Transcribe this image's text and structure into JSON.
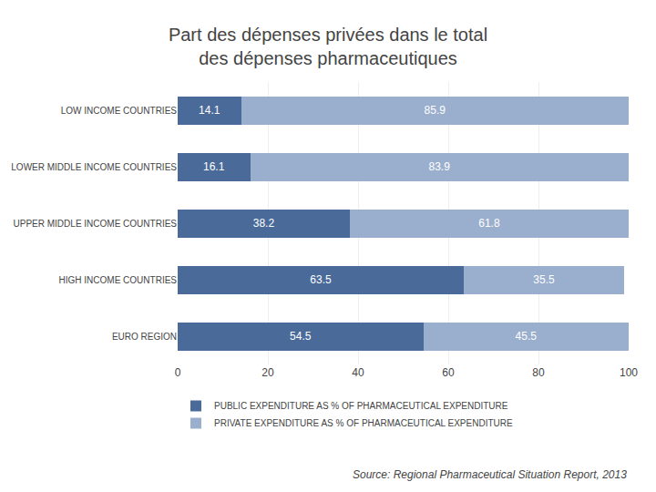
{
  "chart_data": {
    "type": "bar",
    "orientation": "horizontal",
    "stacked": true,
    "title": "Part des dépenses privées dans le total",
    "subtitle": "des dépenses pharmaceutiques",
    "categories": [
      "LOW INCOME COUNTRIES",
      "LOWER MIDDLE INCOME COUNTRIES",
      "UPPER MIDDLE INCOME COUNTRIES",
      "HIGH INCOME COUNTRIES",
      "EURO REGION"
    ],
    "series": [
      {
        "name": "PUBLIC EXPENDITURE AS % OF PHARMACEUTICAL EXPENDITURE",
        "color": "#4a6b9a",
        "values": [
          14.1,
          16.1,
          38.2,
          63.5,
          54.5
        ]
      },
      {
        "name": "PRIVATE EXPENDITURE AS % OF PHARMACEUTICAL EXPENDITURE",
        "color": "#9aaece",
        "values": [
          85.9,
          83.9,
          61.8,
          35.5,
          45.5
        ]
      }
    ],
    "xlim": [
      0,
      100
    ],
    "xticks": [
      0,
      20,
      40,
      60,
      80,
      100
    ],
    "grid": true,
    "data_labels": true,
    "legend": "lower left",
    "annotations": [
      "Source: Regional Pharmaceutical Situation Report, 2013"
    ]
  }
}
